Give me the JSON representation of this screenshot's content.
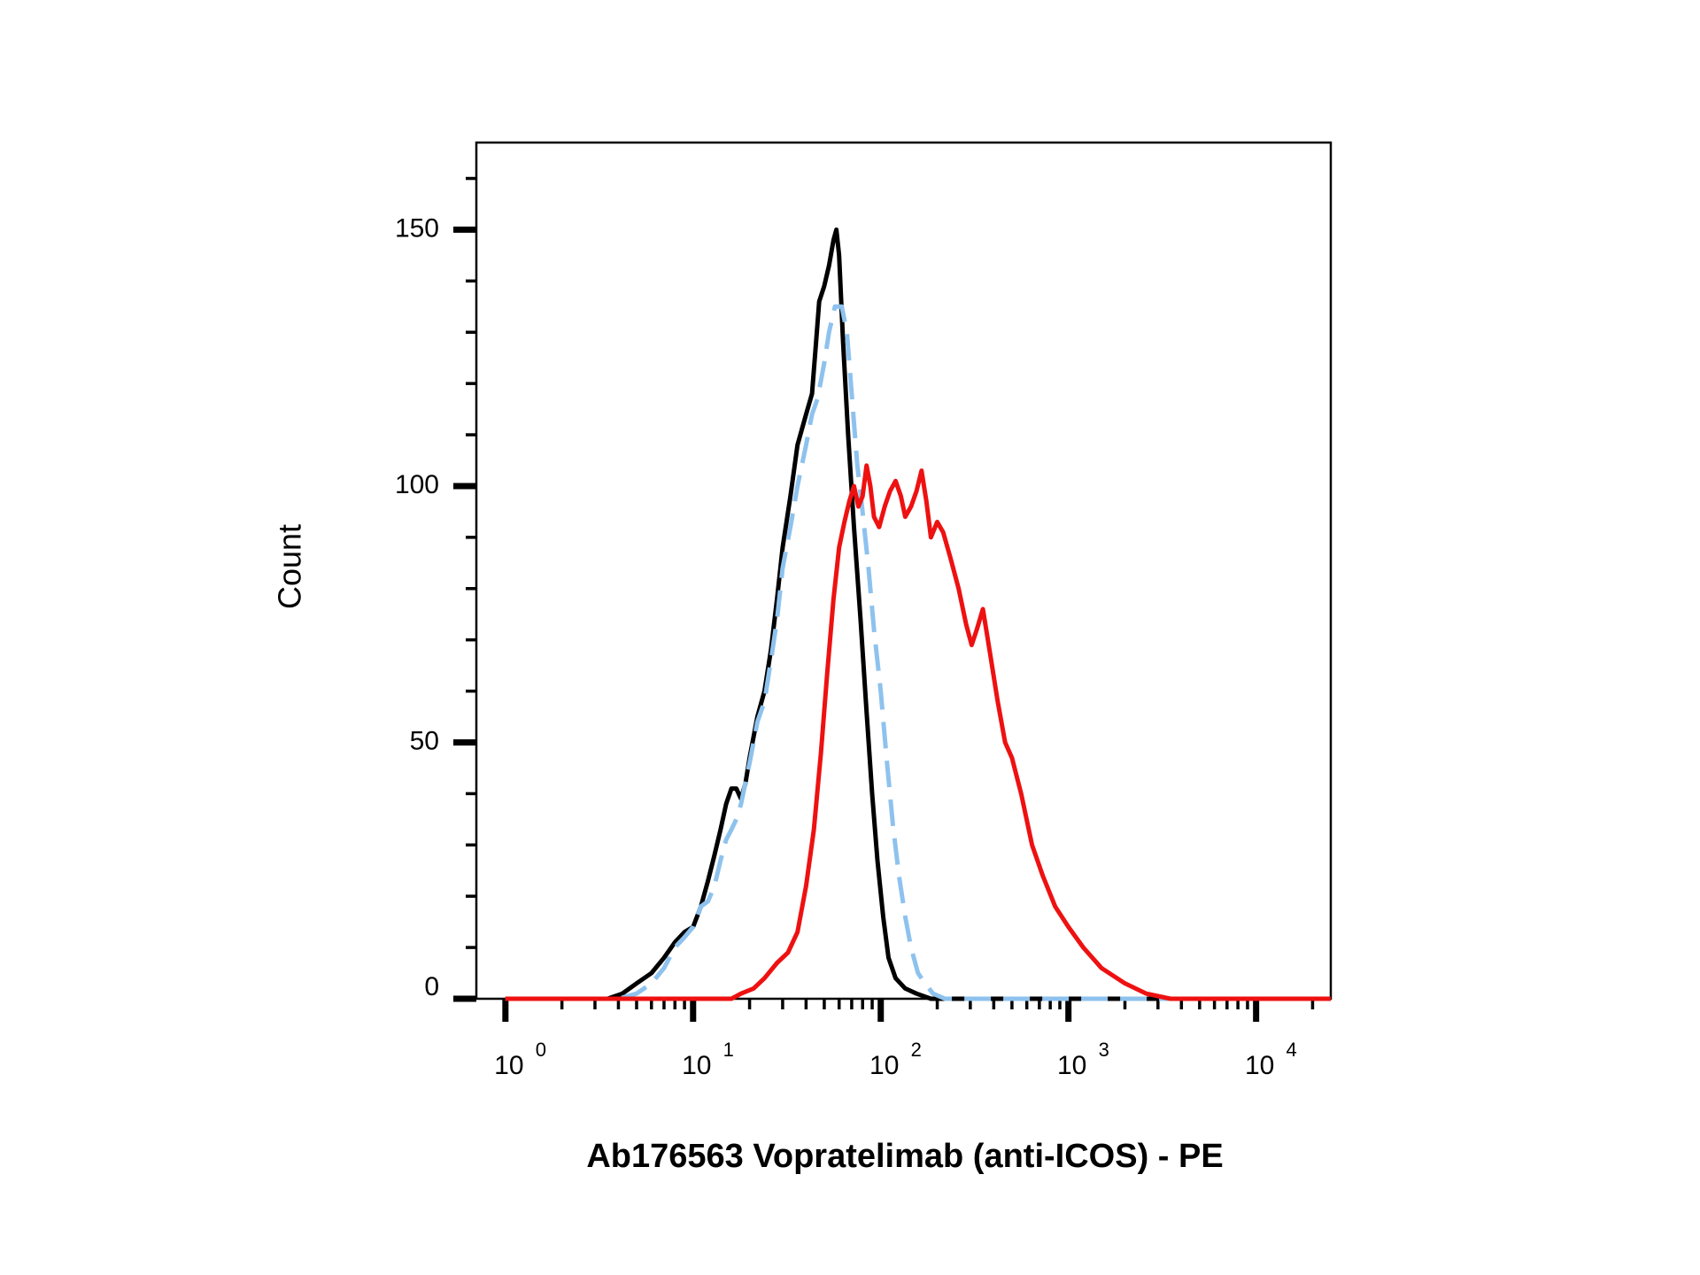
{
  "chart_data": {
    "type": "line",
    "title": "",
    "xlabel": "Ab176563 Vopratelimab (anti-ICOS) - PE",
    "ylabel": "Count",
    "x_scale": "log",
    "xlim": [
      0.7,
      25000
    ],
    "ylim": [
      0,
      167
    ],
    "grid": false,
    "legend": "none",
    "y_ticks": [
      {
        "value": 0,
        "label": "0"
      },
      {
        "value": 50,
        "label": "50"
      },
      {
        "value": 100,
        "label": "100"
      },
      {
        "value": 150,
        "label": "150"
      }
    ],
    "x_ticks": [
      {
        "value": 1,
        "base": "10",
        "exp": "0"
      },
      {
        "value": 10,
        "base": "10",
        "exp": "1"
      },
      {
        "value": 100,
        "base": "10",
        "exp": "2"
      },
      {
        "value": 1000,
        "base": "10",
        "exp": "3"
      },
      {
        "value": 10000,
        "base": "10",
        "exp": "4"
      }
    ],
    "series": [
      {
        "color": "#000000",
        "dash": "solid",
        "points": [
          [
            1,
            0
          ],
          [
            3.5,
            0
          ],
          [
            4.2,
            1
          ],
          [
            5,
            3
          ],
          [
            6,
            5
          ],
          [
            7,
            8
          ],
          [
            8,
            11
          ],
          [
            9,
            13
          ],
          [
            10,
            14
          ],
          [
            11,
            18
          ],
          [
            12,
            23
          ],
          [
            13,
            28
          ],
          [
            14,
            33
          ],
          [
            15,
            38
          ],
          [
            16,
            41
          ],
          [
            17,
            41
          ],
          [
            18,
            39
          ],
          [
            19,
            42
          ],
          [
            20,
            47
          ],
          [
            22,
            55
          ],
          [
            24,
            60
          ],
          [
            26,
            68
          ],
          [
            28,
            78
          ],
          [
            30,
            88
          ],
          [
            33,
            98
          ],
          [
            36,
            108
          ],
          [
            40,
            114
          ],
          [
            43,
            118
          ],
          [
            45,
            127
          ],
          [
            47,
            136
          ],
          [
            50,
            139
          ],
          [
            53,
            143
          ],
          [
            56,
            148
          ],
          [
            58,
            150
          ],
          [
            60,
            145
          ],
          [
            63,
            128
          ],
          [
            67,
            110
          ],
          [
            72,
            92
          ],
          [
            78,
            74
          ],
          [
            84,
            56
          ],
          [
            90,
            40
          ],
          [
            96,
            27
          ],
          [
            103,
            16
          ],
          [
            110,
            8
          ],
          [
            120,
            4
          ],
          [
            135,
            2
          ],
          [
            155,
            1
          ],
          [
            185,
            0
          ],
          [
            25000,
            0
          ]
        ]
      },
      {
        "color": "#8ec2ee",
        "dash": "dashed",
        "points": [
          [
            1,
            0
          ],
          [
            4,
            0
          ],
          [
            5,
            1
          ],
          [
            6,
            3
          ],
          [
            7,
            6
          ],
          [
            8,
            10
          ],
          [
            9,
            12
          ],
          [
            10,
            14
          ],
          [
            11,
            18
          ],
          [
            12,
            19
          ],
          [
            13,
            22
          ],
          [
            14,
            27
          ],
          [
            15,
            31
          ],
          [
            16,
            33
          ],
          [
            17,
            35
          ],
          [
            18,
            38
          ],
          [
            20,
            46
          ],
          [
            22,
            54
          ],
          [
            24,
            58
          ],
          [
            26,
            66
          ],
          [
            28,
            74
          ],
          [
            30,
            84
          ],
          [
            33,
            92
          ],
          [
            36,
            100
          ],
          [
            40,
            108
          ],
          [
            43,
            114
          ],
          [
            46,
            117
          ],
          [
            50,
            124
          ],
          [
            53,
            130
          ],
          [
            57,
            135
          ],
          [
            62,
            135
          ],
          [
            66,
            130
          ],
          [
            70,
            118
          ],
          [
            75,
            104
          ],
          [
            80,
            95
          ],
          [
            86,
            84
          ],
          [
            92,
            72
          ],
          [
            100,
            60
          ],
          [
            108,
            46
          ],
          [
            116,
            34
          ],
          [
            125,
            24
          ],
          [
            135,
            16
          ],
          [
            145,
            10
          ],
          [
            158,
            5
          ],
          [
            172,
            3
          ],
          [
            190,
            1
          ],
          [
            220,
            0
          ],
          [
            25000,
            0
          ]
        ]
      },
      {
        "color": "#ee1111",
        "dash": "solid",
        "points": [
          [
            1,
            0
          ],
          [
            12,
            0
          ],
          [
            16,
            0
          ],
          [
            18,
            1
          ],
          [
            21,
            2
          ],
          [
            24,
            4
          ],
          [
            28,
            7
          ],
          [
            32,
            9
          ],
          [
            36,
            13
          ],
          [
            40,
            22
          ],
          [
            44,
            33
          ],
          [
            48,
            48
          ],
          [
            52,
            64
          ],
          [
            56,
            78
          ],
          [
            60,
            88
          ],
          [
            64,
            93
          ],
          [
            68,
            97
          ],
          [
            72,
            100
          ],
          [
            76,
            96
          ],
          [
            80,
            98
          ],
          [
            84,
            104
          ],
          [
            88,
            100
          ],
          [
            92,
            94
          ],
          [
            98,
            92
          ],
          [
            105,
            96
          ],
          [
            112,
            99
          ],
          [
            120,
            101
          ],
          [
            128,
            98
          ],
          [
            135,
            94
          ],
          [
            145,
            96
          ],
          [
            155,
            99
          ],
          [
            165,
            103
          ],
          [
            175,
            97
          ],
          [
            185,
            90
          ],
          [
            200,
            93
          ],
          [
            215,
            91
          ],
          [
            235,
            86
          ],
          [
            260,
            80
          ],
          [
            285,
            73
          ],
          [
            305,
            69
          ],
          [
            325,
            72
          ],
          [
            350,
            76
          ],
          [
            380,
            68
          ],
          [
            420,
            58
          ],
          [
            460,
            50
          ],
          [
            500,
            47
          ],
          [
            560,
            40
          ],
          [
            640,
            30
          ],
          [
            730,
            24
          ],
          [
            850,
            18
          ],
          [
            1000,
            14
          ],
          [
            1200,
            10
          ],
          [
            1500,
            6
          ],
          [
            2000,
            3
          ],
          [
            2600,
            1
          ],
          [
            3500,
            0
          ],
          [
            25000,
            0
          ]
        ]
      }
    ]
  }
}
